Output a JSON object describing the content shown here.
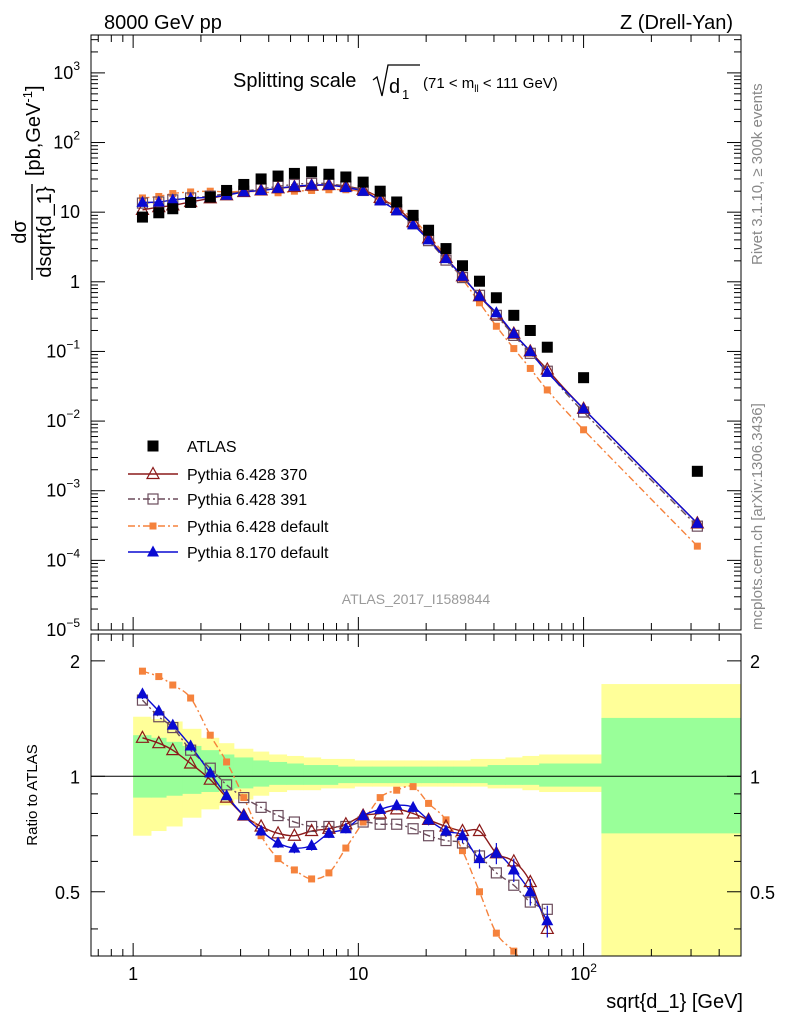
{
  "header": {
    "left": "8000 GeV pp",
    "right": "Z (Drell-Yan)"
  },
  "side_labels": {
    "rivet": "Rivet 3.1.10, ≥ 300k events",
    "mcplots": "mcplots.cern.ch [arXiv:1306.3436]"
  },
  "colors": {
    "atlas": "#000000",
    "p370": "#8b1a1a",
    "p391": "#6b4c5c",
    "p6def": "#f5823c",
    "p8def": "#0a0ad2",
    "band_inner": "#99ff99",
    "band_outer": "#ffff99"
  },
  "chart_data": [
    {
      "type": "scatter",
      "panel": "main",
      "title": {
        "main": "Splitting scale",
        "symbol": "d",
        "sub": "1",
        "range_pre": "(71 < m",
        "range_sub": "ll",
        "range_post": " < 111 GeV)"
      },
      "analysis_id": "ATLAS_2017_I1589844",
      "xlabel": "sqrt{d_1} [GeV]",
      "ylabel_frac": {
        "num": "dσ",
        "den": "dsqrt{d_1}",
        "unit": "[pb,GeV",
        "unit_sup": "-1",
        "unit_close": "]"
      },
      "x_scale": "log",
      "y_scale": "log",
      "xlim": [
        0.65,
        500
      ],
      "ylim": [
        1e-05,
        3500
      ],
      "x_ticks": [
        {
          "v": 1,
          "label": "1"
        },
        {
          "v": 10,
          "label": "10"
        },
        {
          "v": 100,
          "label": "10",
          "sup": "2"
        }
      ],
      "y_ticks": [
        {
          "v": 1e-05,
          "base": "10",
          "sup": "−5"
        },
        {
          "v": 0.0001,
          "base": "10",
          "sup": "−4"
        },
        {
          "v": 0.001,
          "base": "10",
          "sup": "−3"
        },
        {
          "v": 0.01,
          "base": "10",
          "sup": "−2"
        },
        {
          "v": 0.1,
          "base": "10",
          "sup": "−1"
        },
        {
          "v": 1,
          "base": "1",
          "sup": ""
        },
        {
          "v": 10,
          "base": "10",
          "sup": ""
        },
        {
          "v": 100,
          "base": "10",
          "sup": "2"
        },
        {
          "v": 1000,
          "base": "10",
          "sup": "3"
        }
      ],
      "x": [
        1.1,
        1.3,
        1.5,
        1.8,
        2.2,
        2.6,
        3.1,
        3.7,
        4.4,
        5.2,
        6.2,
        7.4,
        8.8,
        10.5,
        12.5,
        14.8,
        17.5,
        20.5,
        24.5,
        29,
        34.5,
        41,
        49,
        58,
        69,
        100,
        320
      ],
      "legend": {
        "position": "bottom-left",
        "entries": [
          "ATLAS",
          "Pythia 6.428 370",
          "Pythia 6.428 391",
          "Pythia 6.428 default",
          "Pythia 8.170 default"
        ]
      },
      "series": [
        {
          "key": "atlas",
          "name": "ATLAS",
          "marker": "filled-square",
          "values": [
            8.5,
            9.8,
            11.2,
            13.8,
            16.5,
            20.5,
            25,
            30,
            33,
            36,
            38,
            35,
            32,
            27,
            20,
            14,
            9,
            5.5,
            3,
            1.7,
            1.02,
            0.59,
            0.33,
            0.2,
            0.115,
            0.042,
            0.0019
          ]
        },
        {
          "key": "p370",
          "name": "Pythia 6.428 370",
          "marker": "open-triangle",
          "values": [
            10.8,
            11.8,
            12.5,
            14,
            15.8,
            17.5,
            19.5,
            20.5,
            22,
            23,
            24,
            24.5,
            23.5,
            21,
            16,
            11.5,
            7.2,
            4.2,
            2.2,
            1.2,
            0.62,
            0.34,
            0.18,
            0.1,
            0.055,
            0.015,
            0.00034
          ]
        },
        {
          "key": "p391",
          "name": "Pythia 6.428 391",
          "marker": "open-square",
          "values": [
            13.5,
            14,
            15,
            16,
            17,
            18.5,
            20,
            21.5,
            23.5,
            25,
            26,
            25.5,
            23.5,
            20.5,
            15,
            10.8,
            6.8,
            3.9,
            2.05,
            1.15,
            0.64,
            0.33,
            0.17,
            0.094,
            0.052,
            0.0135,
            0.00031
          ]
        },
        {
          "key": "p6def",
          "name": "Pythia 6.428 default",
          "marker": "small-filled-square",
          "values": [
            16,
            16.8,
            18.5,
            19.5,
            20,
            19.5,
            20,
            19.5,
            19,
            20,
            20.5,
            21,
            21,
            19.5,
            16,
            12,
            8,
            4.6,
            2.35,
            1.1,
            0.5,
            0.23,
            0.11,
            0.057,
            0.028,
            0.0075,
            0.00016
          ]
        },
        {
          "key": "p8def",
          "name": "Pythia 8.170 default",
          "marker": "filled-triangle",
          "values": [
            13.8,
            14,
            15,
            15.8,
            16.4,
            17.5,
            19.5,
            20.5,
            22,
            23.5,
            24.5,
            24.5,
            22.5,
            20,
            14.5,
            10.5,
            6.6,
            4,
            2.15,
            1.2,
            0.62,
            0.36,
            0.18,
            0.1,
            0.05,
            0.015,
            0.00034
          ]
        }
      ]
    },
    {
      "type": "line",
      "panel": "ratio",
      "ylabel": "Ratio to ATLAS",
      "x_scale": "log",
      "xlim": [
        0.65,
        500
      ],
      "ylim": [
        0.34,
        2.35
      ],
      "y_ticks": [
        {
          "v": 0.5,
          "label": "0.5"
        },
        {
          "v": 1,
          "label": "1"
        },
        {
          "v": 2,
          "label": "2"
        }
      ],
      "reference_line": 1,
      "x": [
        1.1,
        1.3,
        1.5,
        1.8,
        2.2,
        2.6,
        3.1,
        3.7,
        4.4,
        5.2,
        6.2,
        7.4,
        8.8,
        10.5,
        12.5,
        14.8,
        17.5,
        20.5,
        24.5,
        29,
        34.5,
        41,
        49,
        58,
        69
      ],
      "bands": {
        "edges": [
          1.0,
          1.2,
          1.4,
          1.65,
          2.0,
          2.4,
          2.8,
          3.4,
          4.0,
          4.8,
          5.7,
          6.8,
          8.1,
          9.6,
          11.5,
          13.5,
          16,
          19,
          22.5,
          26.5,
          31.5,
          37.5,
          45,
          53.5,
          63.5,
          80,
          120,
          500
        ],
        "inner": [
          [
            0.88,
            1.28
          ],
          [
            0.88,
            1.26
          ],
          [
            0.89,
            1.23
          ],
          [
            0.9,
            1.2
          ],
          [
            0.91,
            1.17
          ],
          [
            0.92,
            1.14
          ],
          [
            0.93,
            1.12
          ],
          [
            0.94,
            1.1
          ],
          [
            0.95,
            1.09
          ],
          [
            0.95,
            1.08
          ],
          [
            0.95,
            1.07
          ],
          [
            0.95,
            1.07
          ],
          [
            0.96,
            1.06
          ],
          [
            0.96,
            1.06
          ],
          [
            0.96,
            1.06
          ],
          [
            0.96,
            1.06
          ],
          [
            0.96,
            1.06
          ],
          [
            0.96,
            1.06
          ],
          [
            0.96,
            1.06
          ],
          [
            0.96,
            1.06
          ],
          [
            0.96,
            1.06
          ],
          [
            0.95,
            1.07
          ],
          [
            0.95,
            1.07
          ],
          [
            0.95,
            1.07
          ],
          [
            0.94,
            1.08
          ],
          [
            0.94,
            1.08
          ],
          [
            0.71,
            1.42
          ]
        ],
        "outer": [
          [
            0.7,
            1.43
          ],
          [
            0.72,
            1.41
          ],
          [
            0.74,
            1.39
          ],
          [
            0.78,
            1.33
          ],
          [
            0.82,
            1.26
          ],
          [
            0.84,
            1.22
          ],
          [
            0.87,
            1.18
          ],
          [
            0.89,
            1.16
          ],
          [
            0.91,
            1.14
          ],
          [
            0.92,
            1.13
          ],
          [
            0.92,
            1.12
          ],
          [
            0.93,
            1.11
          ],
          [
            0.93,
            1.11
          ],
          [
            0.94,
            1.1
          ],
          [
            0.94,
            1.1
          ],
          [
            0.94,
            1.1
          ],
          [
            0.94,
            1.1
          ],
          [
            0.94,
            1.1
          ],
          [
            0.94,
            1.1
          ],
          [
            0.94,
            1.1
          ],
          [
            0.94,
            1.11
          ],
          [
            0.93,
            1.11
          ],
          [
            0.93,
            1.12
          ],
          [
            0.92,
            1.13
          ],
          [
            0.91,
            1.14
          ],
          [
            0.91,
            1.14
          ],
          [
            0.34,
            1.74
          ]
        ]
      },
      "series": [
        {
          "key": "p370",
          "name": "Pythia 6.428 370",
          "values": [
            1.26,
            1.22,
            1.17,
            1.08,
            0.98,
            0.88,
            0.79,
            0.74,
            0.71,
            0.7,
            0.72,
            0.73,
            0.75,
            0.79,
            0.8,
            0.82,
            0.8,
            0.77,
            0.74,
            0.72,
            0.72,
            0.63,
            0.6,
            0.53,
            0.4
          ]
        },
        {
          "key": "p391",
          "name": "Pythia 6.428 391",
          "values": [
            1.58,
            1.43,
            1.34,
            1.17,
            1.05,
            0.95,
            0.88,
            0.83,
            0.79,
            0.76,
            0.74,
            0.74,
            0.74,
            0.76,
            0.75,
            0.75,
            0.73,
            0.7,
            0.68,
            0.67,
            0.62,
            0.56,
            0.52,
            0.47,
            0.45
          ]
        },
        {
          "key": "p6def",
          "name": "Pythia 6.428 default",
          "values": [
            1.88,
            1.82,
            1.73,
            1.6,
            1.28,
            1.09,
            0.88,
            0.7,
            0.61,
            0.57,
            0.54,
            0.56,
            0.65,
            0.76,
            0.88,
            0.92,
            0.94,
            0.85,
            0.77,
            0.64,
            0.5,
            0.39,
            0.35,
            0.31,
            0.28
          ]
        },
        {
          "key": "p8def",
          "name": "Pythia 8.170 default",
          "values": [
            1.64,
            1.48,
            1.36,
            1.2,
            1.02,
            0.89,
            0.79,
            0.72,
            0.67,
            0.65,
            0.66,
            0.71,
            0.73,
            0.79,
            0.82,
            0.84,
            0.83,
            0.77,
            0.72,
            0.7,
            0.61,
            0.63,
            0.57,
            0.5,
            0.42
          ],
          "errors": [
            0.05,
            0.04,
            0.03,
            0.025,
            0.02,
            0.02,
            0.02,
            0.02,
            0.02,
            0.02,
            0.02,
            0.02,
            0.02,
            0.02,
            0.02,
            0.025,
            0.025,
            0.025,
            0.025,
            0.03,
            0.035,
            0.04,
            0.04,
            0.04,
            0.04
          ]
        }
      ]
    }
  ]
}
